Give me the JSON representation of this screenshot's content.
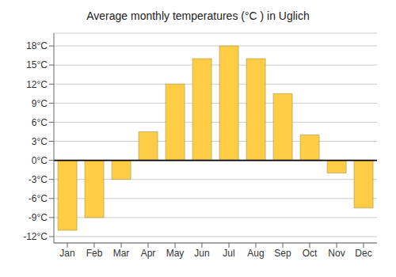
{
  "chart_data": {
    "type": "bar",
    "title": "Average monthly temperatures (°C ) in Uglich",
    "categories": [
      "Jan",
      "Feb",
      "Mar",
      "Apr",
      "May",
      "Jun",
      "Jul",
      "Aug",
      "Sep",
      "Oct",
      "Nov",
      "Dec"
    ],
    "values": [
      -11,
      -9,
      -3,
      4.5,
      12,
      16,
      18,
      16,
      10.5,
      4,
      -2,
      -7.5
    ],
    "color": "#FFCC44",
    "ylim": [
      -13,
      20
    ],
    "yticks": [
      {
        "value": -12,
        "label": "-12°C"
      },
      {
        "value": -9,
        "label": "-9°C"
      },
      {
        "value": -6,
        "label": "-6°C"
      },
      {
        "value": -3,
        "label": "-3°C"
      },
      {
        "value": 0,
        "label": "0°C"
      },
      {
        "value": 3,
        "label": "3°C"
      },
      {
        "value": 6,
        "label": "6°C"
      },
      {
        "value": 9,
        "label": "9°C"
      },
      {
        "value": 12,
        "label": "12°C"
      },
      {
        "value": 15,
        "label": "15°C"
      },
      {
        "value": 18,
        "label": "18°C"
      }
    ],
    "grid": true
  }
}
